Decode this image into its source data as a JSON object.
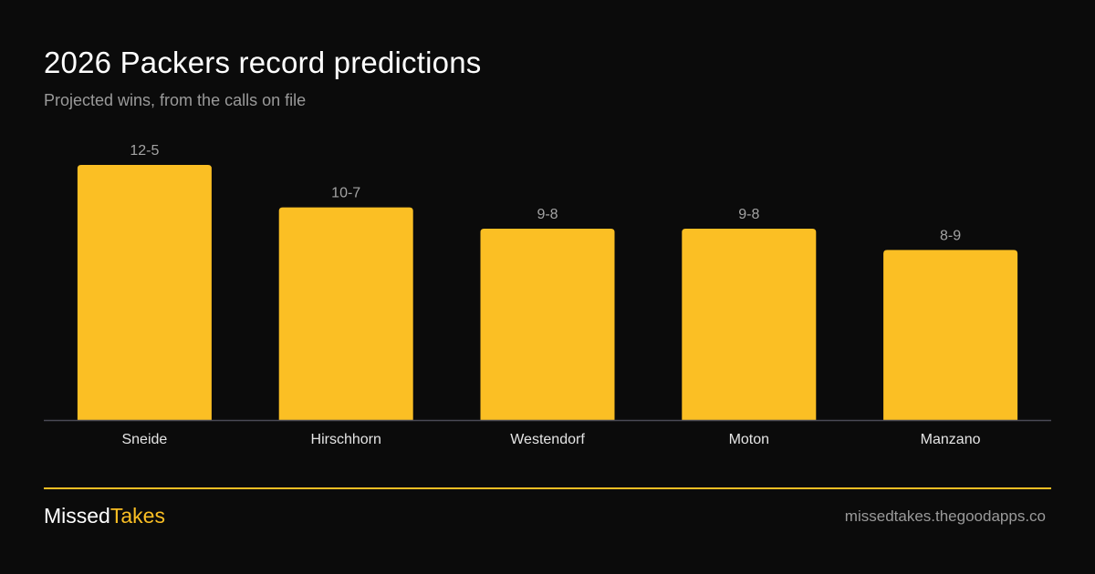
{
  "colors": {
    "background": "#0b0b0b",
    "bar": "#fbbf24",
    "accent": "#fbbf24",
    "text": "#ffffff",
    "muted_text": "#9a9a9a",
    "baseline": "#4a4a55"
  },
  "chart_data": {
    "type": "bar",
    "title": "2026 Packers record predictions",
    "subtitle": "Projected wins, from the calls on file",
    "categories": [
      "Sneide",
      "Hirschhorn",
      "Westendorf",
      "Moton",
      "Manzano"
    ],
    "values": [
      12,
      10,
      9,
      9,
      8
    ],
    "data_labels": [
      "12-5",
      "10-7",
      "9-8",
      "9-8",
      "8-9"
    ],
    "ylim": [
      0,
      12
    ],
    "grid": false,
    "legend": "none",
    "xlabel": "",
    "ylabel": ""
  },
  "footer": {
    "brand_part1": "Missed",
    "brand_part2": "Takes",
    "site": "missedtakes.thegoodapps.co"
  }
}
